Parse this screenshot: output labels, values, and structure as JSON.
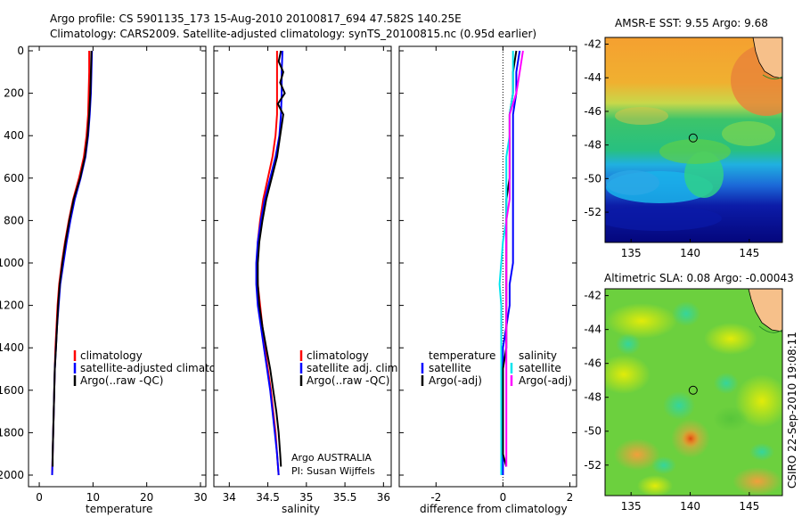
{
  "header": {
    "line1": "Argo profile: CS 5901135_173 15-Aug-2010 20100817_694 47.582S 140.25E",
    "line2": "Climatology: CARS2009. Satellite-adjusted climatology: synTS_20100815.nc (0.95d earlier)"
  },
  "depth_ticks": [
    "0",
    "200",
    "400",
    "600",
    "800",
    "1000",
    "1200",
    "1400",
    "1600",
    "1800",
    "2000"
  ],
  "watermark": "CSIRO 22-Sep-2010 19:08:11",
  "chart_data": [
    {
      "type": "line",
      "id": "temperature",
      "xlabel": "temperature",
      "ylabel": "",
      "xlim": [
        -2,
        31
      ],
      "ylim": [
        2050,
        0
      ],
      "x_ticks": [
        "0",
        "10",
        "20",
        "30"
      ],
      "legend": [
        "climatology",
        "satellite-adjusted climatology",
        "Argo(..raw -QC)"
      ],
      "series": [
        {
          "name": "climatology",
          "color": "#ff0000",
          "depth": [
            0,
            100,
            200,
            300,
            400,
            500,
            600,
            700,
            800,
            900,
            1000,
            1100,
            1200,
            1300,
            1400,
            1500,
            1600,
            1700,
            1800,
            1900,
            2000
          ],
          "values": [
            9.3,
            9.3,
            9.2,
            9.1,
            8.8,
            8.3,
            7.4,
            6.3,
            5.5,
            4.8,
            4.2,
            3.7,
            3.4,
            3.2,
            3.0,
            2.9,
            2.8,
            2.7,
            2.6,
            2.5,
            2.4
          ]
        },
        {
          "name": "satellite-adjusted climatology",
          "color": "#0000ff",
          "depth": [
            0,
            100,
            200,
            300,
            400,
            500,
            600,
            700,
            800,
            900,
            1000,
            1100,
            1200,
            1300,
            1400,
            1500,
            1600,
            1700,
            1800,
            1900,
            2000
          ],
          "values": [
            9.8,
            9.7,
            9.6,
            9.4,
            9.1,
            8.6,
            7.7,
            6.6,
            5.8,
            5.1,
            4.5,
            3.9,
            3.6,
            3.3,
            3.1,
            2.9,
            2.8,
            2.7,
            2.6,
            2.5,
            2.4
          ]
        },
        {
          "name": "Argo(..raw -QC)",
          "color": "#000000",
          "depth": [
            0,
            100,
            200,
            300,
            400,
            500,
            600,
            700,
            800,
            900,
            1000,
            1100,
            1200,
            1300,
            1400,
            1500,
            1600,
            1700,
            1800,
            1900,
            1960
          ],
          "values": [
            9.7,
            9.6,
            9.5,
            9.3,
            9.0,
            8.5,
            7.6,
            6.4,
            5.6,
            4.9,
            4.3,
            3.8,
            3.5,
            3.3,
            3.1,
            2.9,
            2.8,
            2.7,
            2.6,
            2.5,
            2.5
          ]
        }
      ]
    },
    {
      "type": "line",
      "id": "salinity",
      "xlabel": "salinity",
      "ylabel": "",
      "xlim": [
        33.8,
        36.1
      ],
      "ylim": [
        2050,
        0
      ],
      "x_ticks": [
        "34",
        "34.5",
        "35",
        "35.5",
        "36"
      ],
      "legend": [
        "climatology",
        "satellite adj. clim.",
        "Argo(..raw -QC)"
      ],
      "annotation": [
        "Argo AUSTRALIA",
        "PI: Susan Wijffels"
      ],
      "series": [
        {
          "name": "climatology",
          "color": "#ff0000",
          "depth": [
            0,
            100,
            200,
            300,
            400,
            500,
            600,
            700,
            800,
            900,
            1000,
            1100,
            1200,
            1300,
            1400,
            1500,
            1600,
            1700,
            1800,
            1900,
            2000
          ],
          "values": [
            34.62,
            34.62,
            34.62,
            34.62,
            34.6,
            34.56,
            34.5,
            34.44,
            34.4,
            34.37,
            34.36,
            34.37,
            34.4,
            34.43,
            34.46,
            34.5,
            34.54,
            34.57,
            34.6,
            34.62,
            34.64
          ]
        },
        {
          "name": "satellite adj. clim.",
          "color": "#0000ff",
          "depth": [
            0,
            100,
            200,
            300,
            400,
            500,
            600,
            700,
            800,
            900,
            1000,
            1100,
            1200,
            1300,
            1400,
            1500,
            1600,
            1700,
            1800,
            1900,
            2000
          ],
          "values": [
            34.69,
            34.68,
            34.68,
            34.67,
            34.65,
            34.6,
            34.53,
            34.46,
            34.41,
            34.37,
            34.35,
            34.35,
            34.37,
            34.41,
            34.45,
            34.49,
            34.53,
            34.56,
            34.59,
            34.62,
            34.64
          ]
        },
        {
          "name": "Argo(..raw -QC)",
          "color": "#000000",
          "depth": [
            0,
            50,
            100,
            150,
            200,
            250,
            300,
            400,
            500,
            600,
            700,
            800,
            900,
            1000,
            1100,
            1200,
            1300,
            1400,
            1500,
            1600,
            1700,
            1800,
            1900,
            1960
          ],
          "values": [
            34.67,
            34.64,
            34.7,
            34.66,
            34.72,
            34.63,
            34.7,
            34.66,
            34.62,
            34.55,
            34.48,
            34.43,
            34.39,
            34.37,
            34.37,
            34.39,
            34.43,
            34.48,
            34.53,
            34.57,
            34.61,
            34.64,
            34.66,
            34.67
          ]
        }
      ]
    },
    {
      "type": "line",
      "id": "difference",
      "xlabel": "difference from climatology",
      "ylabel": "",
      "xlim": [
        -3.1,
        2.2
      ],
      "ylim": [
        2050,
        0
      ],
      "x_ticks": [
        "-2",
        "0",
        "2"
      ],
      "legend_left": [
        "temperature",
        "satellite",
        "Argo(-adj)"
      ],
      "legend_right": [
        "salinity",
        "satellite",
        "Argo(-adj)"
      ],
      "series": [
        {
          "name": "temperature satellite",
          "color": "#0000ff",
          "depth": [
            0,
            100,
            200,
            300,
            400,
            500,
            600,
            700,
            800,
            900,
            1000,
            1100,
            1200,
            1300,
            1400,
            1500,
            1600,
            1700,
            1800,
            1900,
            2000
          ],
          "values": [
            0.5,
            0.4,
            0.4,
            0.3,
            0.3,
            0.3,
            0.3,
            0.3,
            0.3,
            0.3,
            0.3,
            0.2,
            0.2,
            0.1,
            0.0,
            0.0,
            0.0,
            0.0,
            0.0,
            0.0,
            0.0
          ]
        },
        {
          "name": "temperature Argo(-adj)",
          "color": "#000000",
          "depth": [
            0,
            100,
            200,
            300,
            400,
            500,
            600,
            700,
            800,
            900,
            1000,
            1100,
            1200,
            1300,
            1400,
            1500,
            1600,
            1700,
            1800,
            1900,
            1960
          ],
          "values": [
            0.4,
            0.3,
            0.3,
            0.2,
            0.2,
            0.2,
            0.2,
            0.1,
            0.1,
            0.1,
            0.1,
            0.1,
            0.1,
            0.1,
            0.1,
            0.0,
            0.0,
            0.0,
            0.0,
            0.0,
            0.1
          ]
        },
        {
          "name": "salinity satellite",
          "color": "#00e5ee",
          "depth": [
            0,
            100,
            200,
            300,
            400,
            500,
            600,
            700,
            800,
            900,
            1000,
            1100,
            1200,
            1300,
            1400,
            1500,
            1600,
            1700,
            1800,
            1900,
            2000
          ],
          "values": [
            0.3,
            0.3,
            0.3,
            0.2,
            0.2,
            0.1,
            0.1,
            0.1,
            0.1,
            0.0,
            -0.05,
            -0.1,
            -0.05,
            -0.05,
            -0.05,
            -0.05,
            -0.05,
            -0.05,
            -0.05,
            -0.05,
            -0.05
          ]
        },
        {
          "name": "salinity Argo(-adj)",
          "color": "#ff00ff",
          "depth": [
            0,
            100,
            200,
            300,
            400,
            500,
            600,
            700,
            800,
            900,
            1000,
            1100,
            1200,
            1300,
            1400,
            1500,
            1600,
            1700,
            1800,
            1900,
            1960
          ],
          "values": [
            0.6,
            0.5,
            0.4,
            0.2,
            0.2,
            0.2,
            0.2,
            0.2,
            0.1,
            0.1,
            0.1,
            0.1,
            0.1,
            0.1,
            0.1,
            0.1,
            0.1,
            0.1,
            0.1,
            0.1,
            0.1
          ]
        }
      ]
    },
    {
      "type": "heatmap",
      "id": "sst_map",
      "title": "AMSR-E SST: 9.55 Argo: 9.68",
      "x_ticks": [
        "135",
        "140",
        "145"
      ],
      "y_ticks": [
        "-42",
        "-44",
        "-46",
        "-48",
        "-50",
        "-52"
      ],
      "xlim": [
        132.8,
        147.8
      ],
      "ylim": [
        -53.8,
        -41.6
      ],
      "marker": [
        140.25,
        -47.582
      ]
    },
    {
      "type": "heatmap",
      "id": "sla_map",
      "title": "Altimetric SLA: 0.08 Argo: -0.00043",
      "x_ticks": [
        "135",
        "140",
        "145"
      ],
      "y_ticks": [
        "-42",
        "-44",
        "-46",
        "-48",
        "-50",
        "-52"
      ],
      "xlim": [
        132.8,
        147.8
      ],
      "ylim": [
        -53.8,
        -41.6
      ],
      "marker": [
        140.25,
        -47.582
      ]
    }
  ]
}
